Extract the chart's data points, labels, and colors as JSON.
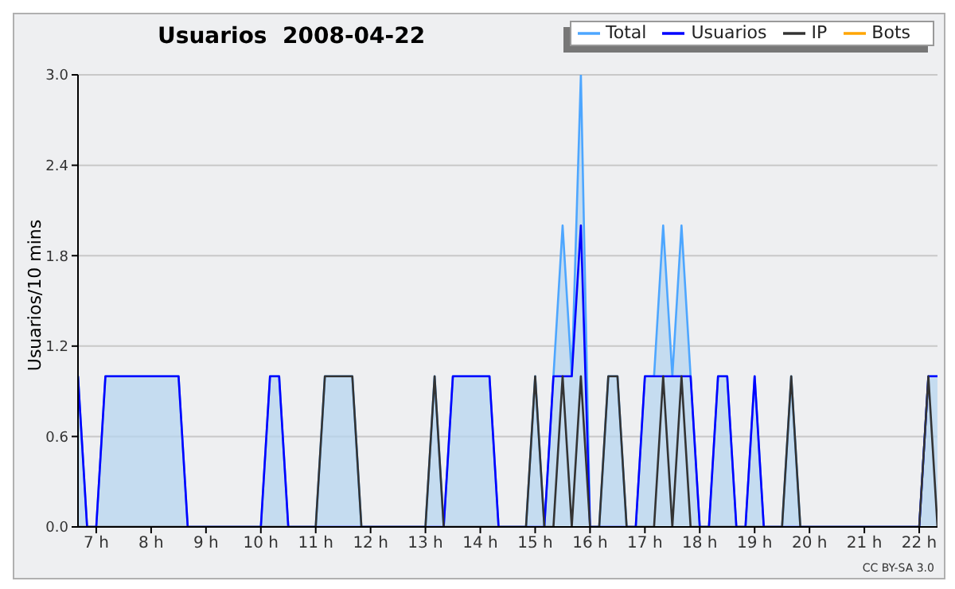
{
  "chart_data": {
    "type": "line",
    "title": "Usuarios  2008-04-22",
    "ylabel": "Usuarios/10 mins",
    "annotations": [
      "CC BY-SA 3.0"
    ],
    "x": [
      6.667,
      6.833,
      7,
      7.167,
      7.333,
      7.5,
      7.667,
      7.833,
      8,
      8.167,
      8.333,
      8.5,
      8.667,
      8.833,
      9,
      9.167,
      9.333,
      9.5,
      9.667,
      9.833,
      10,
      10.167,
      10.333,
      10.5,
      10.667,
      10.833,
      11,
      11.167,
      11.333,
      11.5,
      11.667,
      11.833,
      12,
      12.167,
      12.333,
      12.5,
      12.667,
      12.833,
      13,
      13.167,
      13.333,
      13.5,
      13.667,
      13.833,
      14,
      14.167,
      14.333,
      14.5,
      14.667,
      14.833,
      15,
      15.167,
      15.333,
      15.5,
      15.667,
      15.833,
      16,
      16.167,
      16.333,
      16.5,
      16.667,
      16.833,
      17,
      17.167,
      17.333,
      17.5,
      17.667,
      17.833,
      18,
      18.167,
      18.333,
      18.5,
      18.667,
      18.833,
      19,
      19.167,
      19.333,
      19.5,
      19.667,
      19.833,
      20,
      20.167,
      20.333,
      20.5,
      20.667,
      20.833,
      21,
      21.167,
      21.333,
      21.5,
      21.667,
      21.833,
      22,
      22.167,
      22.333
    ],
    "series": [
      {
        "name": "Total",
        "type": "area",
        "color": "#4da6ff",
        "values": [
          1,
          0,
          0,
          1,
          1,
          1,
          1,
          1,
          1,
          1,
          1,
          1,
          0,
          0,
          0,
          0,
          0,
          0,
          0,
          0,
          0,
          1,
          1,
          0,
          0,
          0,
          0,
          1,
          1,
          1,
          1,
          0,
          0,
          0,
          0,
          0,
          0,
          0,
          0,
          1,
          0,
          1,
          1,
          1,
          1,
          1,
          0,
          0,
          0,
          0,
          1,
          0,
          1,
          2,
          1,
          3,
          0,
          0,
          1,
          1,
          0,
          0,
          1,
          1,
          2,
          1,
          2,
          1,
          0,
          0,
          1,
          1,
          0,
          0,
          1,
          0,
          0,
          0,
          1,
          0,
          0,
          0,
          0,
          0,
          0,
          0,
          0,
          0,
          0,
          0,
          0,
          0,
          0,
          1,
          1
        ]
      },
      {
        "name": "Usuarios",
        "color": "#0000ff",
        "values": [
          1,
          0,
          0,
          1,
          1,
          1,
          1,
          1,
          1,
          1,
          1,
          1,
          0,
          0,
          0,
          0,
          0,
          0,
          0,
          0,
          0,
          1,
          1,
          0,
          0,
          0,
          0,
          0,
          0,
          0,
          0,
          0,
          0,
          0,
          0,
          0,
          0,
          0,
          0,
          0,
          0,
          1,
          1,
          1,
          1,
          1,
          0,
          0,
          0,
          0,
          0,
          0,
          1,
          1,
          1,
          2,
          0,
          0,
          0,
          0,
          0,
          0,
          1,
          1,
          1,
          1,
          1,
          1,
          0,
          0,
          1,
          1,
          0,
          0,
          1,
          0,
          0,
          0,
          0,
          0,
          0,
          0,
          0,
          0,
          0,
          0,
          0,
          0,
          0,
          0,
          0,
          0,
          0,
          1,
          1
        ]
      },
      {
        "name": "IP",
        "color": "#333333",
        "values": [
          0,
          0,
          0,
          0,
          0,
          0,
          0,
          0,
          0,
          0,
          0,
          0,
          0,
          0,
          0,
          0,
          0,
          0,
          0,
          0,
          0,
          0,
          0,
          0,
          0,
          0,
          0,
          1,
          1,
          1,
          1,
          0,
          0,
          0,
          0,
          0,
          0,
          0,
          0,
          1,
          0,
          0,
          0,
          0,
          0,
          0,
          0,
          0,
          0,
          0,
          1,
          0,
          0,
          1,
          0,
          1,
          0,
          0,
          1,
          1,
          0,
          0,
          0,
          0,
          1,
          0,
          1,
          0,
          0,
          0,
          0,
          0,
          0,
          0,
          0,
          0,
          0,
          0,
          1,
          0,
          0,
          0,
          0,
          0,
          0,
          0,
          0,
          0,
          0,
          0,
          0,
          0,
          0,
          1,
          0
        ]
      },
      {
        "name": "Bots",
        "color": "#ffa500",
        "values": [
          null,
          null,
          null,
          null,
          null,
          null,
          null,
          null,
          null,
          null,
          null,
          null,
          null,
          null,
          null,
          null,
          null,
          null,
          null,
          null,
          null,
          null,
          null,
          null,
          null,
          null,
          null,
          null,
          null,
          null,
          null,
          null,
          null,
          null,
          null,
          null,
          null,
          null,
          null,
          null,
          null,
          null,
          null,
          null,
          null,
          null,
          null,
          null,
          null,
          null,
          null,
          null,
          null,
          null,
          null,
          null,
          null,
          null,
          null,
          null,
          null,
          null,
          null,
          null,
          null,
          null,
          null,
          null,
          null,
          null,
          null,
          null,
          null,
          null,
          null,
          null,
          null,
          null,
          null,
          null,
          null,
          null,
          null,
          null,
          null,
          null,
          null,
          null,
          null,
          null,
          null,
          null,
          null,
          null,
          null
        ]
      }
    ],
    "xlim": [
      6.667,
      22.333
    ],
    "xticks": [
      {
        "value": 7,
        "label": "7 h"
      },
      {
        "value": 8,
        "label": "8 h"
      },
      {
        "value": 9,
        "label": "9 h"
      },
      {
        "value": 10,
        "label": "10 h"
      },
      {
        "value": 11,
        "label": "11 h"
      },
      {
        "value": 12,
        "label": "12 h"
      },
      {
        "value": 13,
        "label": "13 h"
      },
      {
        "value": 14,
        "label": "14 h"
      },
      {
        "value": 15,
        "label": "15 h"
      },
      {
        "value": 16,
        "label": "16 h"
      },
      {
        "value": 17,
        "label": "17 h"
      },
      {
        "value": 18,
        "label": "18 h"
      },
      {
        "value": 19,
        "label": "19 h"
      },
      {
        "value": 20,
        "label": "20 h"
      },
      {
        "value": 21,
        "label": "21 h"
      },
      {
        "value": 22,
        "label": "22 h"
      }
    ],
    "ylim": [
      0,
      3
    ],
    "yticks": [
      {
        "value": 0,
        "label": "0.0"
      },
      {
        "value": 0.6,
        "label": "0.6"
      },
      {
        "value": 1.2,
        "label": "1.2"
      },
      {
        "value": 1.8,
        "label": "1.8"
      },
      {
        "value": 2.4,
        "label": "2.4"
      },
      {
        "value": 3,
        "label": "3.0"
      }
    ],
    "grid": "y",
    "legend": "top right",
    "marker": "none",
    "line_style": "solid"
  }
}
